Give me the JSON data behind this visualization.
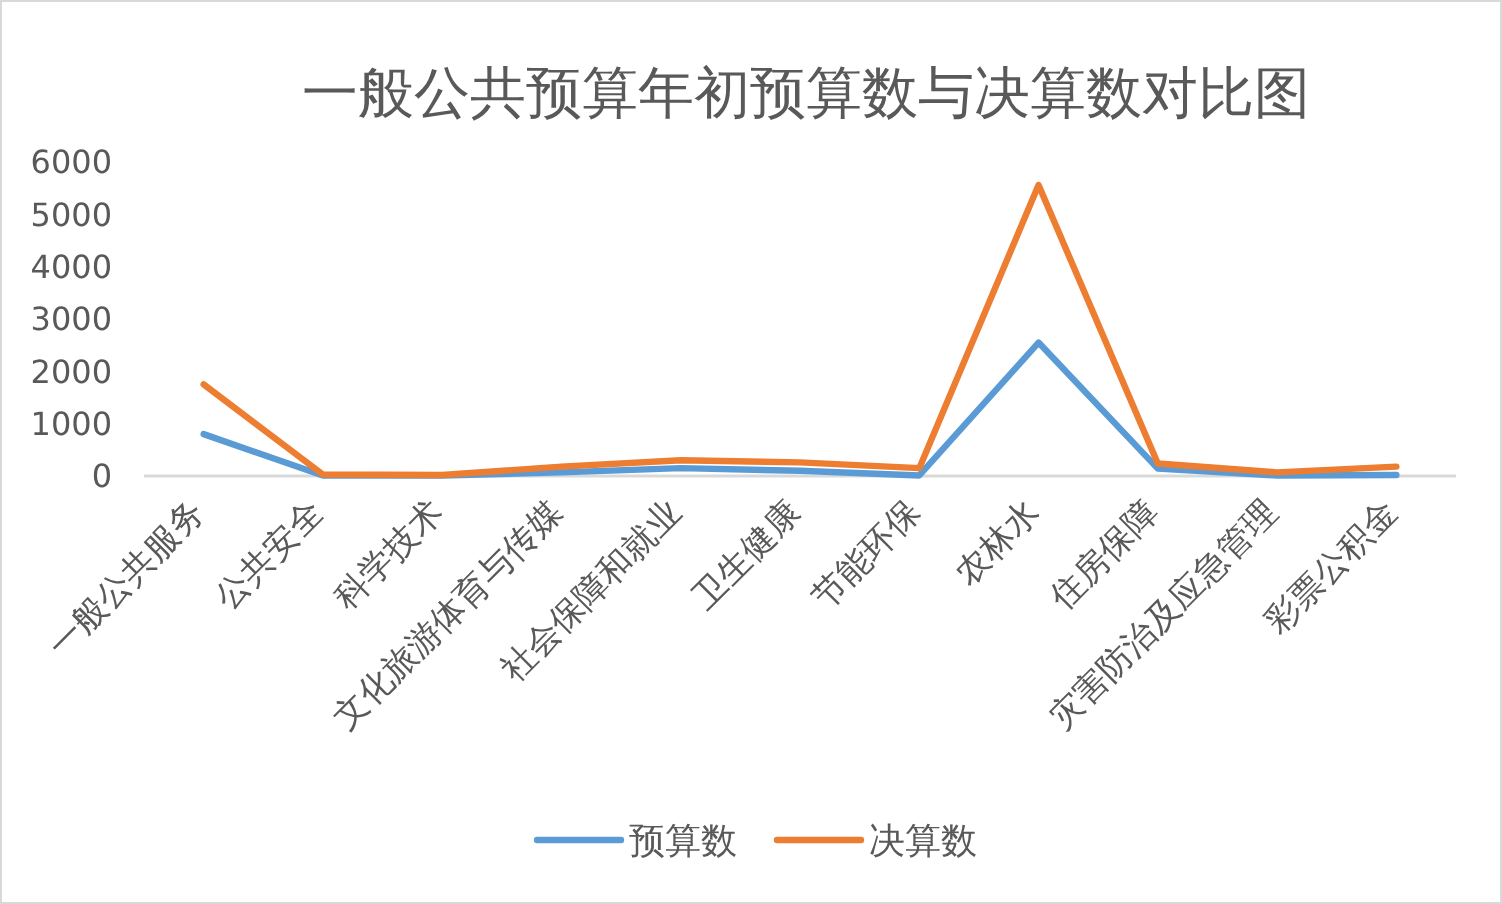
{
  "chart_data": {
    "type": "line",
    "title": "一般公共预算年初预算数与决算数对比图",
    "categories": [
      "一般公共服务",
      "公共安全",
      "科学技术",
      "文化旅游体育与传媒",
      "社会保障和就业",
      "卫生健康",
      "节能环保",
      "农林水",
      "住房保障",
      "灾害防治及应急管理",
      "彩票公积金"
    ],
    "series": [
      {
        "name": "预算数",
        "color": "#5b9bd5",
        "values": [
          800,
          10,
          10,
          70,
          150,
          100,
          10,
          2550,
          140,
          10,
          20
        ]
      },
      {
        "name": "决算数",
        "color": "#ed7d31",
        "values": [
          1750,
          30,
          20,
          180,
          300,
          260,
          150,
          5560,
          240,
          70,
          180
        ]
      }
    ],
    "ylim": [
      0,
      6000
    ],
    "yticks": [
      0,
      1000,
      2000,
      3000,
      4000,
      5000,
      6000
    ],
    "legend": "bottom"
  }
}
